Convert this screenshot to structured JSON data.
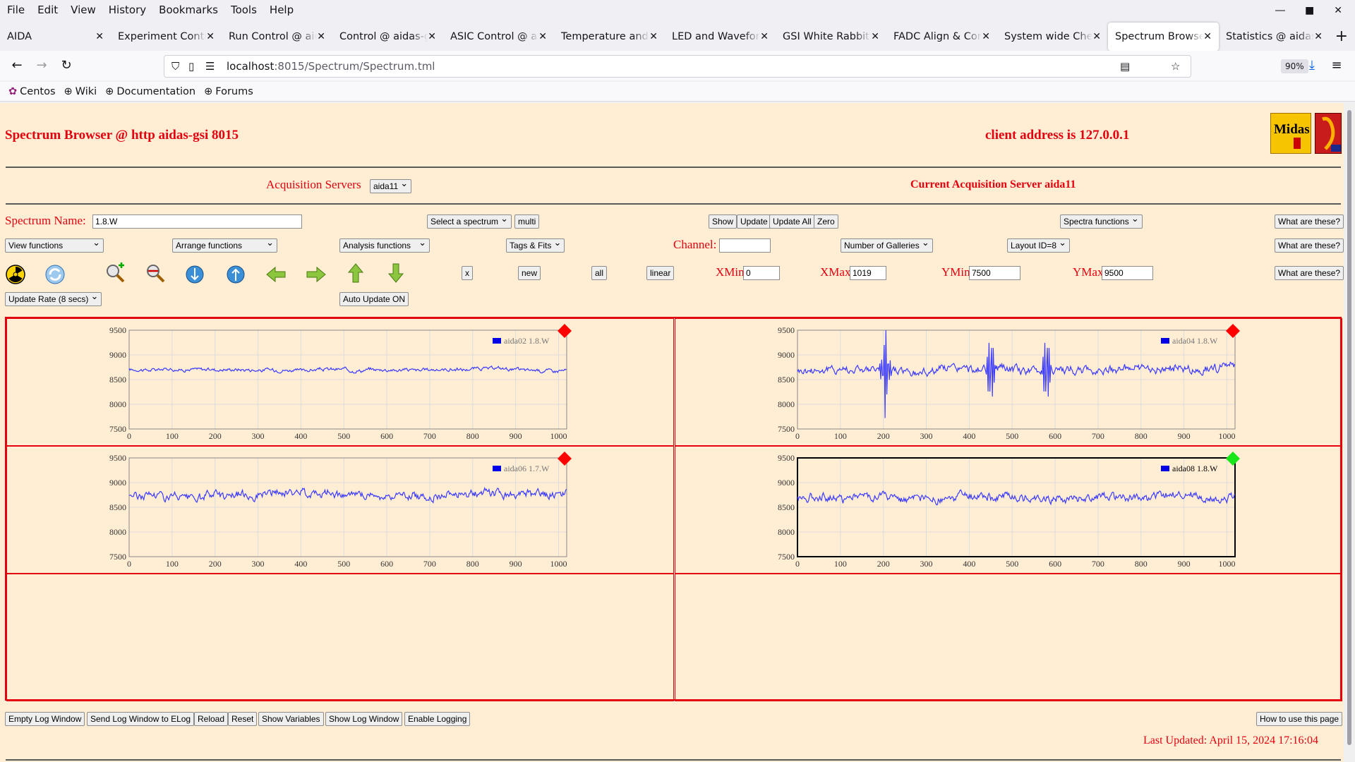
{
  "browser": {
    "menu": [
      "File",
      "Edit",
      "View",
      "History",
      "Bookmarks",
      "Tools",
      "Help"
    ],
    "tabs": [
      {
        "label": "AIDA",
        "active": false
      },
      {
        "label": "Experiment Contro",
        "active": false
      },
      {
        "label": "Run Control @ aid",
        "active": false
      },
      {
        "label": "Control @ aidas-g",
        "active": false
      },
      {
        "label": "ASIC Control @ ai",
        "active": false
      },
      {
        "label": "Temperature and s",
        "active": false
      },
      {
        "label": "LED and Waveform",
        "active": false
      },
      {
        "label": "GSI White Rabbit T",
        "active": false
      },
      {
        "label": "FADC Align & Cont",
        "active": false
      },
      {
        "label": "System wide Check",
        "active": false
      },
      {
        "label": "Spectrum Browser",
        "active": true
      },
      {
        "label": "Statistics @ aidas-",
        "active": false
      }
    ],
    "url_host": "localhost",
    "url_path": ":8015/Spectrum/Spectrum.tml",
    "zoom": "90%",
    "bookmarks": [
      "Centos",
      "Wiki",
      "Documentation",
      "Forums"
    ]
  },
  "page": {
    "title": "Spectrum Browser @ http aidas-gsi 8015",
    "client_address": "client address is 127.0.0.1",
    "acq_servers_label": "Acquisition Servers",
    "acq_server_value": "aida11",
    "current_server": "Current Acquisition Server aida11",
    "spectrum_name_label": "Spectrum Name:",
    "spectrum_name_value": "1.8.W",
    "select_spectrum": "Select a spectrum",
    "multi": "multi",
    "show": "Show",
    "update": "Update",
    "update_all": "Update All",
    "zero": "Zero",
    "spectra_functions": "Spectra functions",
    "what_are_these": "What are these?",
    "view_functions": "View functions",
    "arrange_functions": "Arrange functions",
    "analysis_functions": "Analysis functions",
    "tags_fits": "Tags & Fits",
    "channel_label": "Channel:",
    "channel_value": "",
    "number_of_galleries": "Number of Galleries",
    "layout_id": "Layout ID=8",
    "btn_x": "x",
    "btn_new": "new",
    "btn_all": "all",
    "btn_linear": "linear",
    "xmin_label": "XMin",
    "xmin_value": "0",
    "xmax_label": "XMax",
    "xmax_value": "1019",
    "ymin_label": "YMin",
    "ymin_value": "7500",
    "ymax_label": "YMax",
    "ymax_value": "9500",
    "update_rate": "Update Rate (8 secs)",
    "auto_update": "Auto Update ON",
    "bottom_buttons": [
      "Empty Log Window",
      "Send Log Window to ELog",
      "Reload",
      "Reset",
      "Show Variables",
      "Show Log Window",
      "Enable Logging"
    ],
    "how_to_use": "How to use this page",
    "last_updated": "Last Updated: April 15, 2024 17:16:04",
    "colors": {
      "accent": "#e3000f",
      "background": "#ffeed4",
      "series": "#3b3bff",
      "status_ok": "#19e619",
      "status_bad": "#ff0000"
    },
    "icons": [
      "radiation-icon",
      "refresh-icon",
      "zoom-in-icon",
      "zoom-out-icon",
      "expand-down-icon",
      "expand-up-icon",
      "arrow-left-icon",
      "arrow-right-icon",
      "arrow-up-icon",
      "arrow-down-icon"
    ]
  },
  "chart_data": [
    {
      "type": "line",
      "series": [
        {
          "name": "aida02 1.8.W"
        }
      ],
      "xlim": [
        0,
        1019
      ],
      "ylim": [
        7500,
        9500
      ],
      "x_ticks": [
        0,
        100,
        200,
        300,
        400,
        500,
        600,
        700,
        800,
        900,
        1000
      ],
      "y_ticks": [
        9500,
        9000,
        8500,
        8000,
        7500
      ],
      "baseline": 8700,
      "noise": 45,
      "spikes": [],
      "status": "bad",
      "selected": false
    },
    {
      "type": "line",
      "series": [
        {
          "name": "aida04 1.8.W"
        }
      ],
      "xlim": [
        0,
        1019
      ],
      "ylim": [
        7500,
        9500
      ],
      "x_ticks": [
        0,
        100,
        200,
        300,
        400,
        500,
        600,
        700,
        800,
        900,
        1000
      ],
      "y_ticks": [
        9500,
        9000,
        8500,
        8000,
        7500
      ],
      "baseline": 8700,
      "noise": 110,
      "spikes": [
        205,
        450,
        580
      ],
      "status": "bad",
      "selected": false
    },
    {
      "type": "line",
      "series": [
        {
          "name": "aida06 1.7.W"
        }
      ],
      "xlim": [
        0,
        1019
      ],
      "ylim": [
        7500,
        9500
      ],
      "x_ticks": [
        0,
        100,
        200,
        300,
        400,
        500,
        600,
        700,
        800,
        900,
        1000
      ],
      "y_ticks": [
        9500,
        9000,
        8500,
        8000,
        7500
      ],
      "baseline": 8750,
      "noise": 110,
      "spikes": [],
      "status": "bad",
      "selected": false
    },
    {
      "type": "line",
      "series": [
        {
          "name": "aida08 1.8.W"
        }
      ],
      "xlim": [
        0,
        1019
      ],
      "ylim": [
        7500,
        9500
      ],
      "x_ticks": [
        0,
        100,
        200,
        300,
        400,
        500,
        600,
        700,
        800,
        900,
        1000
      ],
      "y_ticks": [
        9500,
        9000,
        8500,
        8000,
        7500
      ],
      "baseline": 8700,
      "noise": 110,
      "spikes": [],
      "status": "ok",
      "selected": true
    }
  ]
}
